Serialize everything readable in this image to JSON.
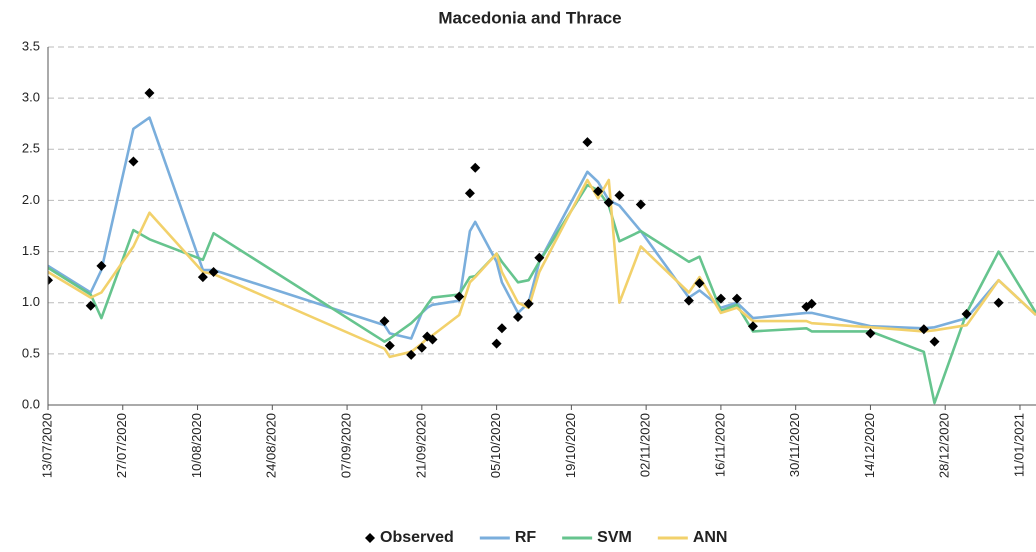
{
  "chart_data": {
    "type": "line",
    "title": "Macedonia and Thrace",
    "x": [
      "2020-07-13",
      "2020-07-21",
      "2020-07-23",
      "2020-07-29",
      "2020-08-01",
      "2020-08-11",
      "2020-08-13",
      "2020-09-14",
      "2020-09-15",
      "2020-09-19",
      "2020-09-21",
      "2020-09-22",
      "2020-09-23",
      "2020-09-28",
      "2020-09-30",
      "2020-10-01",
      "2020-10-05",
      "2020-10-06",
      "2020-10-09",
      "2020-10-11",
      "2020-10-13",
      "2020-10-22",
      "2020-10-24",
      "2020-10-26",
      "2020-10-28",
      "2020-11-01",
      "2020-11-10",
      "2020-11-12",
      "2020-11-16",
      "2020-11-19",
      "2020-11-22",
      "2020-12-02",
      "2020-12-03",
      "2020-12-14",
      "2020-12-24",
      "2020-12-26",
      "2021-01-01",
      "2021-01-07",
      "2021-01-14"
    ],
    "series": [
      {
        "name": "Observed",
        "color": "#000000",
        "marker": "diamond",
        "values": [
          1.22,
          0.97,
          1.36,
          2.38,
          3.05,
          1.25,
          1.3,
          0.82,
          0.58,
          0.49,
          0.56,
          0.67,
          0.64,
          1.06,
          2.07,
          2.32,
          0.6,
          0.75,
          0.86,
          0.99,
          1.44,
          2.57,
          2.09,
          1.98,
          2.05,
          1.96,
          1.02,
          1.19,
          1.04,
          1.04,
          0.77,
          0.96,
          0.99,
          0.7,
          0.74,
          0.62,
          0.89,
          1.0,
          null
        ]
      },
      {
        "name": "RF",
        "color": "#7aaedc",
        "values": [
          1.36,
          1.1,
          1.32,
          2.7,
          2.81,
          1.32,
          1.32,
          0.78,
          0.7,
          0.65,
          0.9,
          0.95,
          0.98,
          1.02,
          1.7,
          1.79,
          1.4,
          1.2,
          0.9,
          1.0,
          1.4,
          2.28,
          2.18,
          2.0,
          1.95,
          1.7,
          1.05,
          1.12,
          0.95,
          1.0,
          0.85,
          0.9,
          0.9,
          0.77,
          0.75,
          0.76,
          0.85,
          1.22,
          0.88
        ]
      },
      {
        "name": "SVM",
        "color": "#66c48e",
        "values": [
          1.34,
          1.08,
          0.85,
          1.71,
          1.62,
          1.42,
          1.68,
          0.62,
          0.65,
          0.8,
          0.9,
          0.98,
          1.05,
          1.08,
          1.25,
          1.26,
          1.48,
          1.4,
          1.2,
          1.22,
          1.4,
          2.15,
          2.1,
          1.95,
          1.6,
          1.7,
          1.4,
          1.45,
          0.92,
          0.98,
          0.72,
          0.75,
          0.72,
          0.72,
          0.52,
          0.02,
          0.9,
          1.5,
          0.9
        ]
      },
      {
        "name": "ANN",
        "color": "#f2d16b",
        "values": [
          1.3,
          1.05,
          1.1,
          1.55,
          1.88,
          1.3,
          1.28,
          0.55,
          0.47,
          0.52,
          0.6,
          0.65,
          0.68,
          0.88,
          1.2,
          1.25,
          1.48,
          1.3,
          1.0,
          0.95,
          1.3,
          2.2,
          2.02,
          2.2,
          1.0,
          1.55,
          1.1,
          1.25,
          0.9,
          0.95,
          0.82,
          0.82,
          0.8,
          0.76,
          0.72,
          0.73,
          0.78,
          1.22,
          0.88
        ]
      }
    ],
    "xlim": [
      "2020-07-13",
      "2021-01-14"
    ],
    "xticks": [
      {
        "value": "2020-07-13",
        "label": "13/07/2020"
      },
      {
        "value": "2020-07-27",
        "label": "27/07/2020"
      },
      {
        "value": "2020-08-10",
        "label": "10/08/2020"
      },
      {
        "value": "2020-08-24",
        "label": "24/08/2020"
      },
      {
        "value": "2020-09-07",
        "label": "07/09/2020"
      },
      {
        "value": "2020-09-21",
        "label": "21/09/2020"
      },
      {
        "value": "2020-10-05",
        "label": "05/10/2020"
      },
      {
        "value": "2020-10-19",
        "label": "19/10/2020"
      },
      {
        "value": "2020-11-02",
        "label": "02/11/2020"
      },
      {
        "value": "2020-11-16",
        "label": "16/11/2020"
      },
      {
        "value": "2020-11-30",
        "label": "30/11/2020"
      },
      {
        "value": "2020-12-14",
        "label": "14/12/2020"
      },
      {
        "value": "2020-12-28",
        "label": "28/12/2020"
      },
      {
        "value": "2021-01-11",
        "label": "11/01/2021"
      }
    ],
    "ylim": [
      0,
      3.5
    ],
    "yticks": [
      {
        "value": 0,
        "label": "0.0"
      },
      0.5,
      {
        "value": 1,
        "label": "1.0"
      },
      1.5,
      {
        "value": 2,
        "label": "2.0"
      },
      2.5,
      {
        "value": 3,
        "label": "3.0"
      },
      3.5
    ],
    "grid": true,
    "legend": "bottom"
  }
}
